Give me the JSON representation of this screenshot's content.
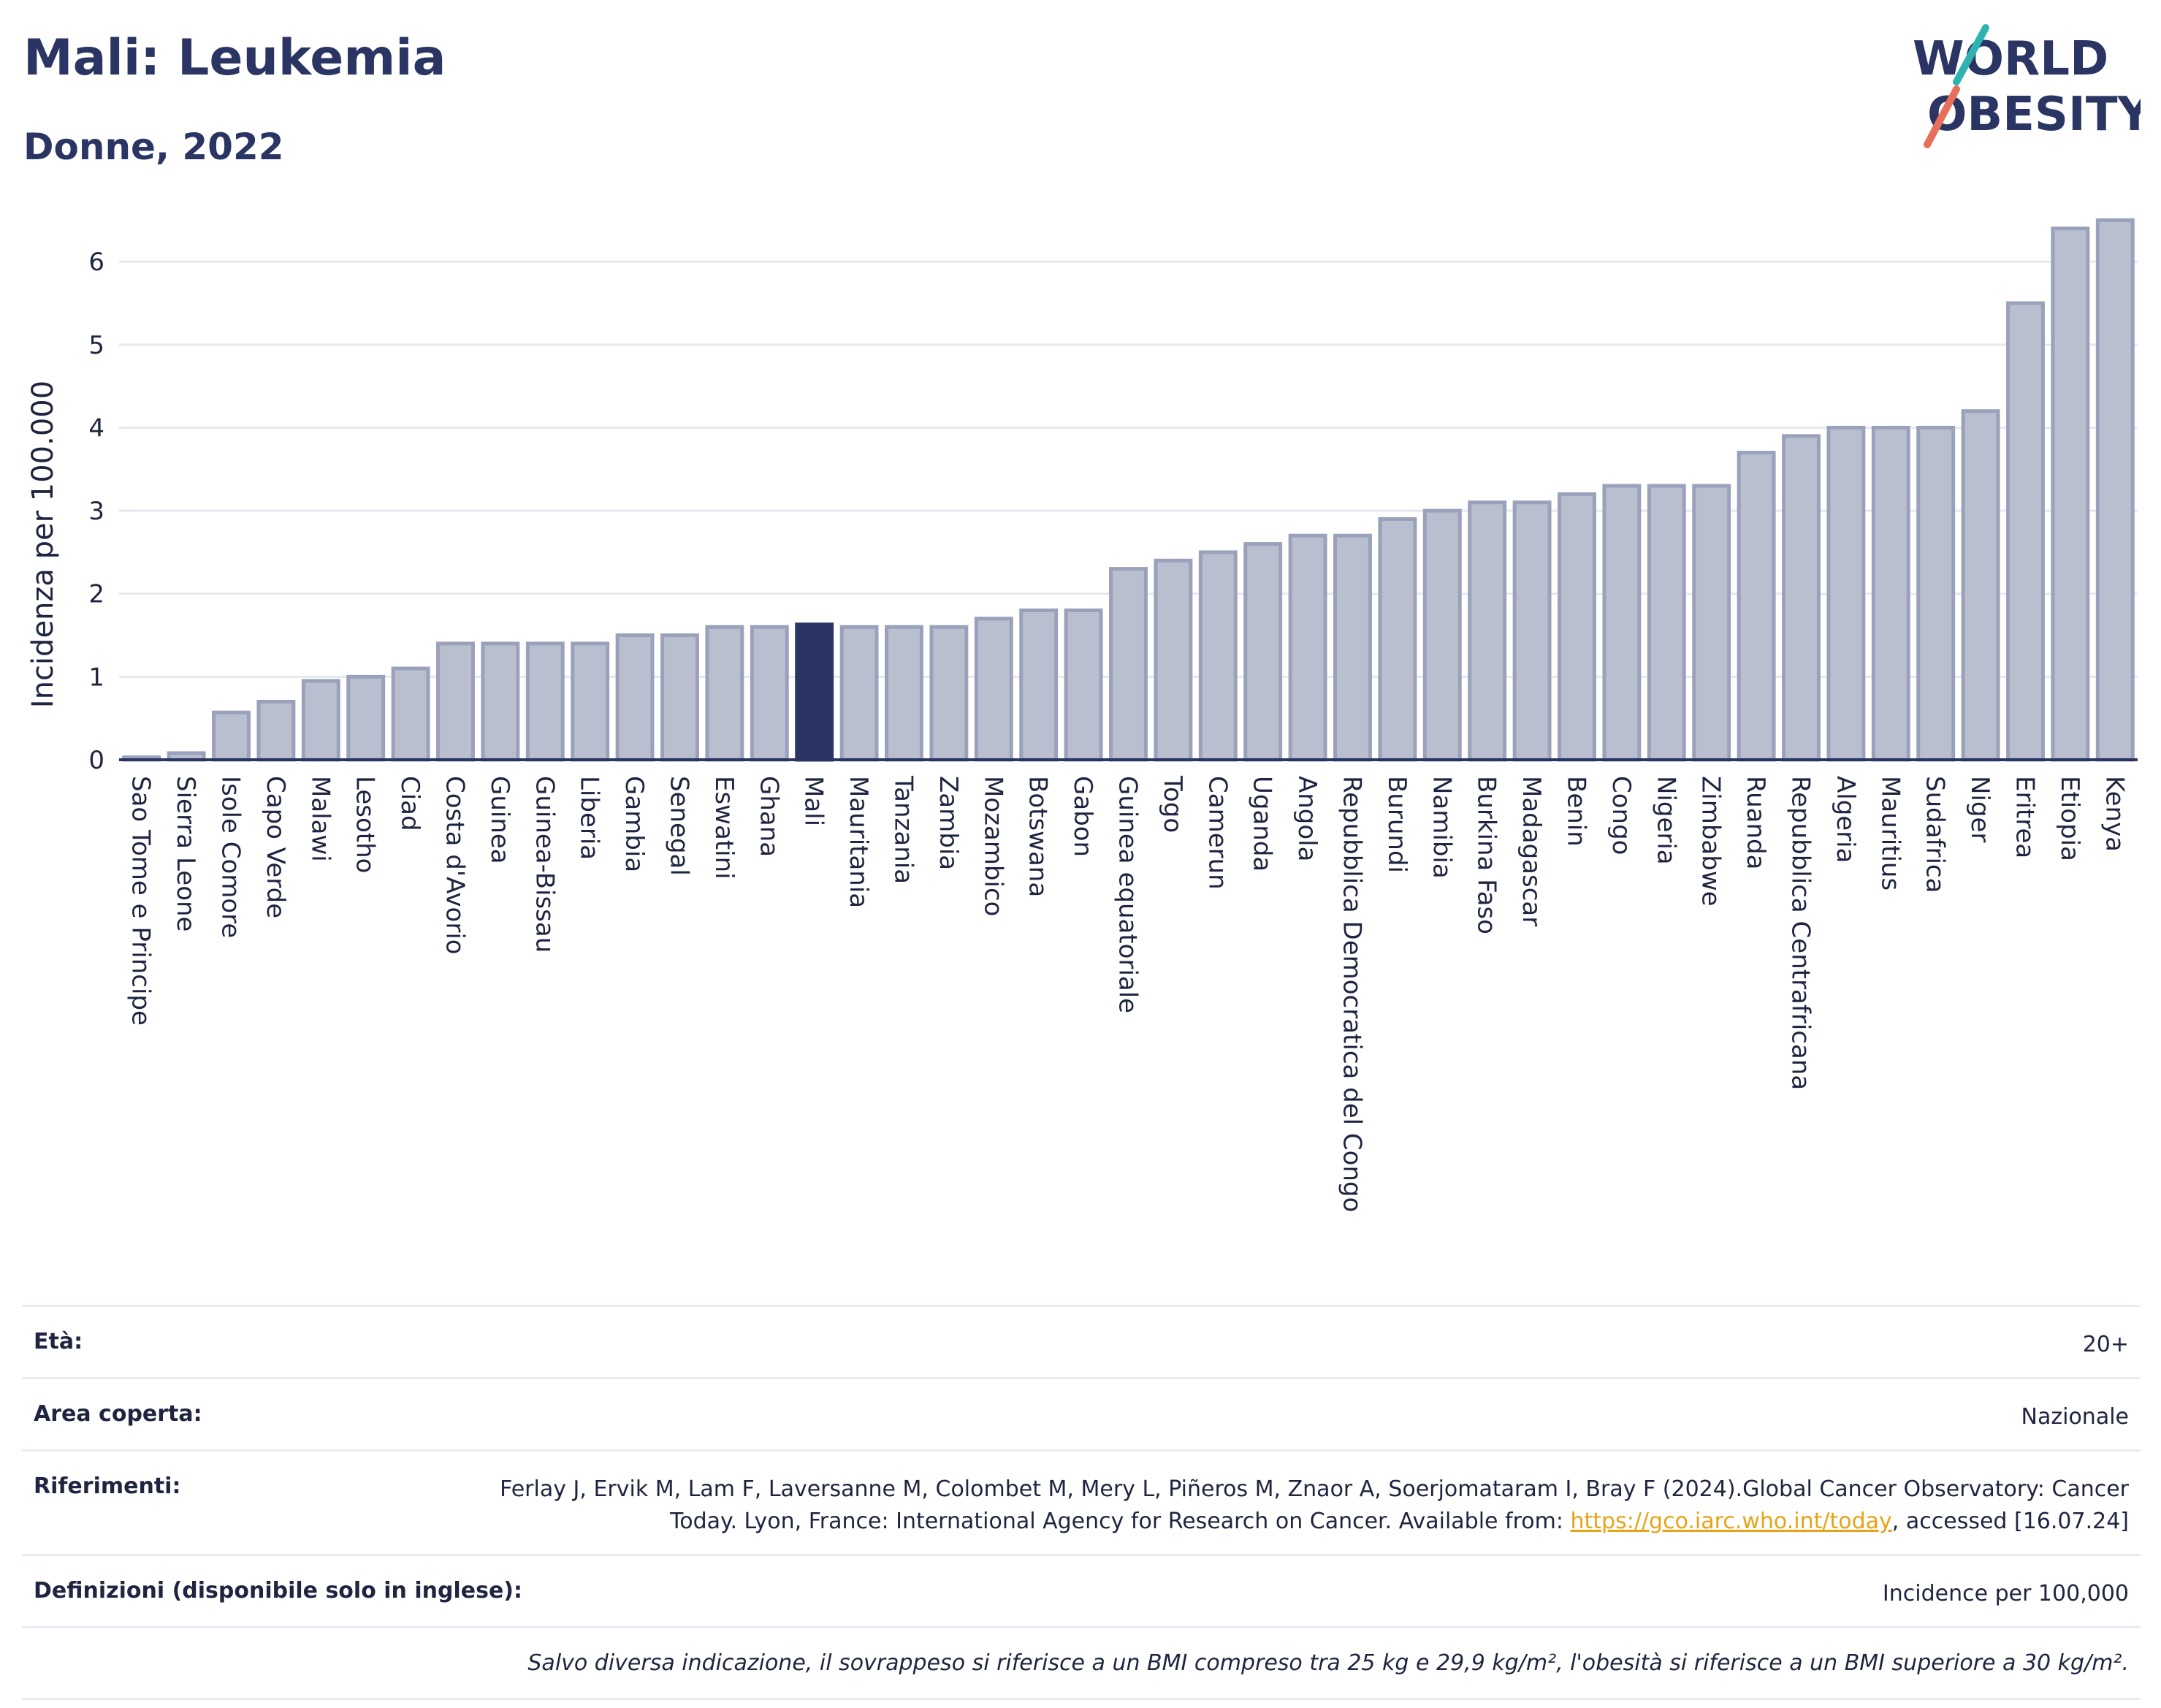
{
  "title": "Mali: Leukemia",
  "subtitle": "Donne, 2022",
  "logo": {
    "line1": "WORLD",
    "line2": "OBESITY"
  },
  "chart_data": {
    "type": "bar",
    "ylabel": "Incidenza per 100.000",
    "ylim": [
      0,
      6.6
    ],
    "yticks": [
      0,
      1,
      2,
      3,
      4,
      5,
      6
    ],
    "grid": true,
    "highlight": "Mali",
    "bar_color": "#b9bfcf",
    "bar_edge_color": "#9aa1ba",
    "highlight_color": "#2a3563",
    "categories": [
      "Sao Tome e Principe",
      "Sierra Leone",
      "Isole Comore",
      "Capo Verde",
      "Malawi",
      "Lesotho",
      "Ciad",
      "Costa d'Avorio",
      "Guinea",
      "Guinea-Bissau",
      "Liberia",
      "Gambia",
      "Senegal",
      "Eswatini",
      "Ghana",
      "Mali",
      "Mauritania",
      "Tanzania",
      "Zambia",
      "Mozambico",
      "Botswana",
      "Gabon",
      "Guinea equatoriale",
      "Togo",
      "Camerun",
      "Uganda",
      "Angola",
      "Repubblica Democratica del Congo",
      "Burundi",
      "Namibia",
      "Burkina Faso",
      "Madagascar",
      "Benin",
      "Congo",
      "Nigeria",
      "Zimbabwe",
      "Ruanda",
      "Repubblica Centrafricana",
      "Algeria",
      "Mauritius",
      "Sudafrica",
      "Niger",
      "Eritrea",
      "Etiopia",
      "Kenya"
    ],
    "values": [
      0.03,
      0.08,
      0.57,
      0.7,
      0.95,
      1.0,
      1.1,
      1.4,
      1.4,
      1.4,
      1.4,
      1.5,
      1.5,
      1.6,
      1.6,
      1.63,
      1.6,
      1.6,
      1.6,
      1.7,
      1.8,
      1.8,
      2.3,
      2.4,
      2.5,
      2.6,
      2.7,
      2.7,
      2.9,
      3.0,
      3.1,
      3.1,
      3.2,
      3.3,
      3.3,
      3.3,
      3.7,
      3.9,
      4.0,
      4.0,
      4.0,
      4.2,
      5.5,
      6.4,
      6.5
    ]
  },
  "info": {
    "age_label": "Età:",
    "age_value": "20+",
    "area_label": "Area coperta:",
    "area_value": "Nazionale",
    "ref_label": "Riferimenti:",
    "ref_text_1": "Ferlay J, Ervik M, Lam F, Laversanne M, Colombet M, Mery L, Piñeros M, Znaor A, Soerjomataram I, Bray F (2024).Global Cancer Observatory: Cancer Today. Lyon, France: International Agency for Research on Cancer. Available from: ",
    "ref_link": "https://gco.iarc.who.int/today",
    "ref_text_2": ", accessed [16.07.24]",
    "def_label": "Definizioni (disponibile solo in inglese):",
    "def_value": "Incidence per 100,000",
    "note": "Salvo diversa indicazione, il sovrappeso si riferisce a un BMI compreso tra 25 kg e 29,9 kg/m², l'obesità si riferisce a un BMI superiore a 30 kg/m²."
  }
}
